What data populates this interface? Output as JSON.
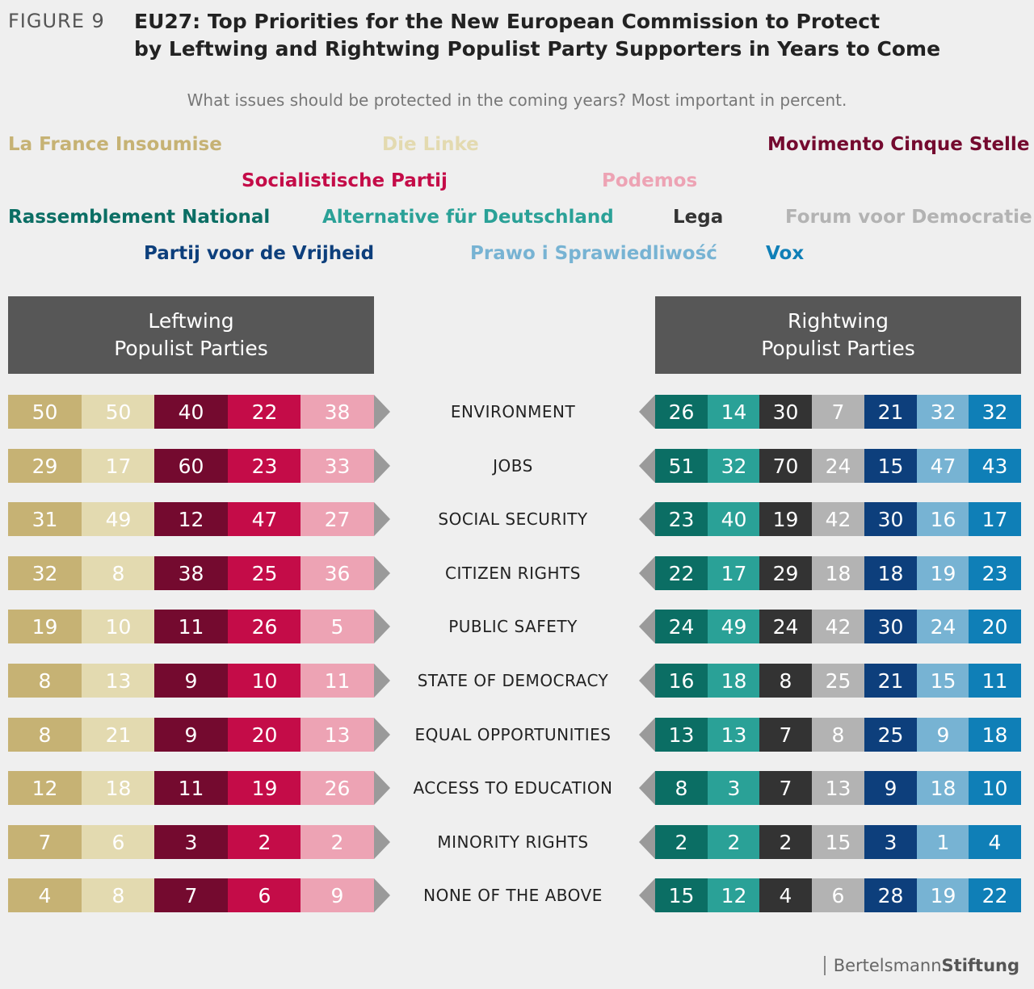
{
  "figure_label": "FIGURE 9",
  "title_line1": "EU27: Top Priorities for the New European Commission to Protect",
  "title_line2": "by Leftwing and Rightwing Populist Party Supporters in Years to Come",
  "subtitle": "What issues should be protected in the coming years? Most important in percent.",
  "source_prefix": "Bertelsmann",
  "source_suffix": "Stiftung",
  "chart_data": {
    "type": "table",
    "title": "EU27: Top Priorities for the New European Commission to Protect by Leftwing and Rightwing Populist Party Supporters in Years to Come",
    "subtitle": "What issues should be protected in the coming years? Most important in percent.",
    "categories": [
      "ENVIRONMENT",
      "JOBS",
      "SOCIAL SECURITY",
      "CITIZEN RIGHTS",
      "PUBLIC SAFETY",
      "STATE OF DEMOCRACY",
      "EQUAL OPPORTUNITIES",
      "ACCESS TO EDUCATION",
      "MINORITY RIGHTS",
      "NONE OF THE ABOVE"
    ],
    "groups": [
      {
        "name": "Leftwing\nPopulist Parties",
        "side": "left",
        "series": [
          {
            "name": "La France Insoumise",
            "color": "#c6b274",
            "text_color": "#ffffff",
            "values": [
              50,
              29,
              31,
              32,
              19,
              8,
              8,
              12,
              7,
              4
            ]
          },
          {
            "name": "Die Linke",
            "color": "#e3dab0",
            "text_color": "#ffffff",
            "values": [
              50,
              17,
              49,
              8,
              10,
              13,
              21,
              18,
              6,
              8
            ]
          },
          {
            "name": "Movimento Cinque Stelle",
            "color": "#740a2f",
            "text_color": "#ffffff",
            "values": [
              40,
              60,
              12,
              38,
              11,
              9,
              9,
              11,
              3,
              7
            ]
          },
          {
            "name": "Socialistische Partij",
            "color": "#c40c48",
            "text_color": "#ffffff",
            "values": [
              22,
              23,
              47,
              25,
              26,
              10,
              20,
              19,
              2,
              6
            ]
          },
          {
            "name": "Podemos",
            "color": "#eda3b4",
            "text_color": "#ffffff",
            "values": [
              38,
              33,
              27,
              36,
              5,
              11,
              13,
              26,
              2,
              9
            ]
          }
        ]
      },
      {
        "name": "Rightwing\nPopulist Parties",
        "side": "right",
        "series": [
          {
            "name": "Rassemblement National",
            "color": "#0b6e64",
            "text_color": "#ffffff",
            "values": [
              26,
              51,
              23,
              22,
              24,
              16,
              13,
              8,
              2,
              15
            ]
          },
          {
            "name": "Alternative für Deutschland",
            "color": "#2aa197",
            "text_color": "#ffffff",
            "values": [
              14,
              32,
              40,
              17,
              49,
              18,
              13,
              3,
              2,
              12
            ]
          },
          {
            "name": "Lega",
            "color": "#333333",
            "text_color": "#ffffff",
            "values": [
              30,
              70,
              19,
              29,
              24,
              8,
              7,
              7,
              2,
              4
            ]
          },
          {
            "name": "Forum voor Democratie",
            "color": "#b3b3b3",
            "text_color": "#ffffff",
            "values": [
              7,
              24,
              42,
              18,
              42,
              25,
              8,
              13,
              15,
              6
            ]
          },
          {
            "name": "Partij voor de Vrijheid",
            "color": "#0d3f7c",
            "text_color": "#ffffff",
            "values": [
              21,
              15,
              30,
              18,
              30,
              21,
              25,
              9,
              3,
              28
            ]
          },
          {
            "name": "Prawo i Sprawiedliwość",
            "color": "#77b3d3",
            "text_color": "#ffffff",
            "values": [
              32,
              47,
              16,
              19,
              24,
              15,
              9,
              18,
              1,
              19
            ]
          },
          {
            "name": "Vox",
            "color": "#0f7fb7",
            "text_color": "#ffffff",
            "values": [
              32,
              43,
              17,
              23,
              20,
              11,
              18,
              10,
              4,
              22
            ]
          }
        ]
      }
    ],
    "legend_colors": {
      "La France Insoumise": "#c6b274",
      "Die Linke": "#e3dab0",
      "Movimento Cinque Stelle": "#740a2f",
      "Socialistische Partij": "#c40c48",
      "Podemos": "#eda3b4",
      "Rassemblement National": "#0b6e64",
      "Alternative für Deutschland": "#2aa197",
      "Lega": "#333333",
      "Forum voor Democratie": "#b3b3b3",
      "Partij voor de Vrijheid": "#0d3f7c",
      "Prawo i Sprawiedliwość": "#77b3d3",
      "Vox": "#0f7fb7"
    },
    "legend_placement": "top",
    "grid": false
  }
}
